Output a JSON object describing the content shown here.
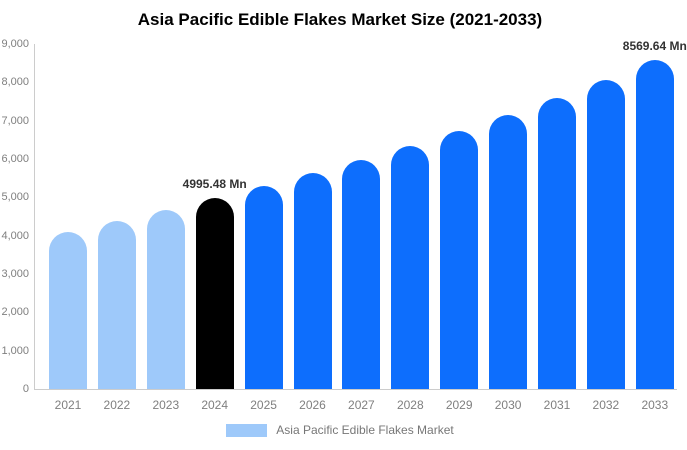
{
  "chart_data": {
    "type": "bar",
    "title": "Asia Pacific Edible Flakes Market Size (2021-2033)",
    "categories": [
      "2021",
      "2022",
      "2023",
      "2024",
      "2025",
      "2026",
      "2027",
      "2028",
      "2029",
      "2030",
      "2031",
      "2032",
      "2033"
    ],
    "values": [
      4100,
      4380,
      4660,
      4995.48,
      5300,
      5630,
      5980,
      6350,
      6740,
      7160,
      7600,
      8070,
      8569.64
    ],
    "bar_colors": [
      "#9ec9fa",
      "#9ec9fa",
      "#9ec9fa",
      "#000000",
      "#0d6efd",
      "#0d6efd",
      "#0d6efd",
      "#0d6efd",
      "#0d6efd",
      "#0d6efd",
      "#0d6efd",
      "#0d6efd",
      "#0d6efd"
    ],
    "ylim": [
      0,
      9000
    ],
    "y_ticks": [
      "0",
      "1,000",
      "2,000",
      "3,000",
      "4,000",
      "5,000",
      "6,000",
      "7,000",
      "8,000",
      "9,000"
    ],
    "grid": false,
    "xlabel": "",
    "ylabel": "",
    "annotations": [
      {
        "category_index": 3,
        "text": "4995.48 Mn"
      },
      {
        "category_index": 12,
        "text": "8569.64 Mn"
      }
    ],
    "legend": {
      "label": "Asia Pacific Edible Flakes Market",
      "swatch_color": "#9ec9fa",
      "position": "bottom"
    },
    "colors": {
      "past_bars": "#9ec9fa",
      "current_year_bar": "#000000",
      "forecast_bars": "#0d6efd",
      "axis_line": "#cccccc",
      "tick_text": "#7f7f7f",
      "legend_text": "#777777",
      "title_text": "#000000",
      "annotation_text": "#333333"
    }
  }
}
